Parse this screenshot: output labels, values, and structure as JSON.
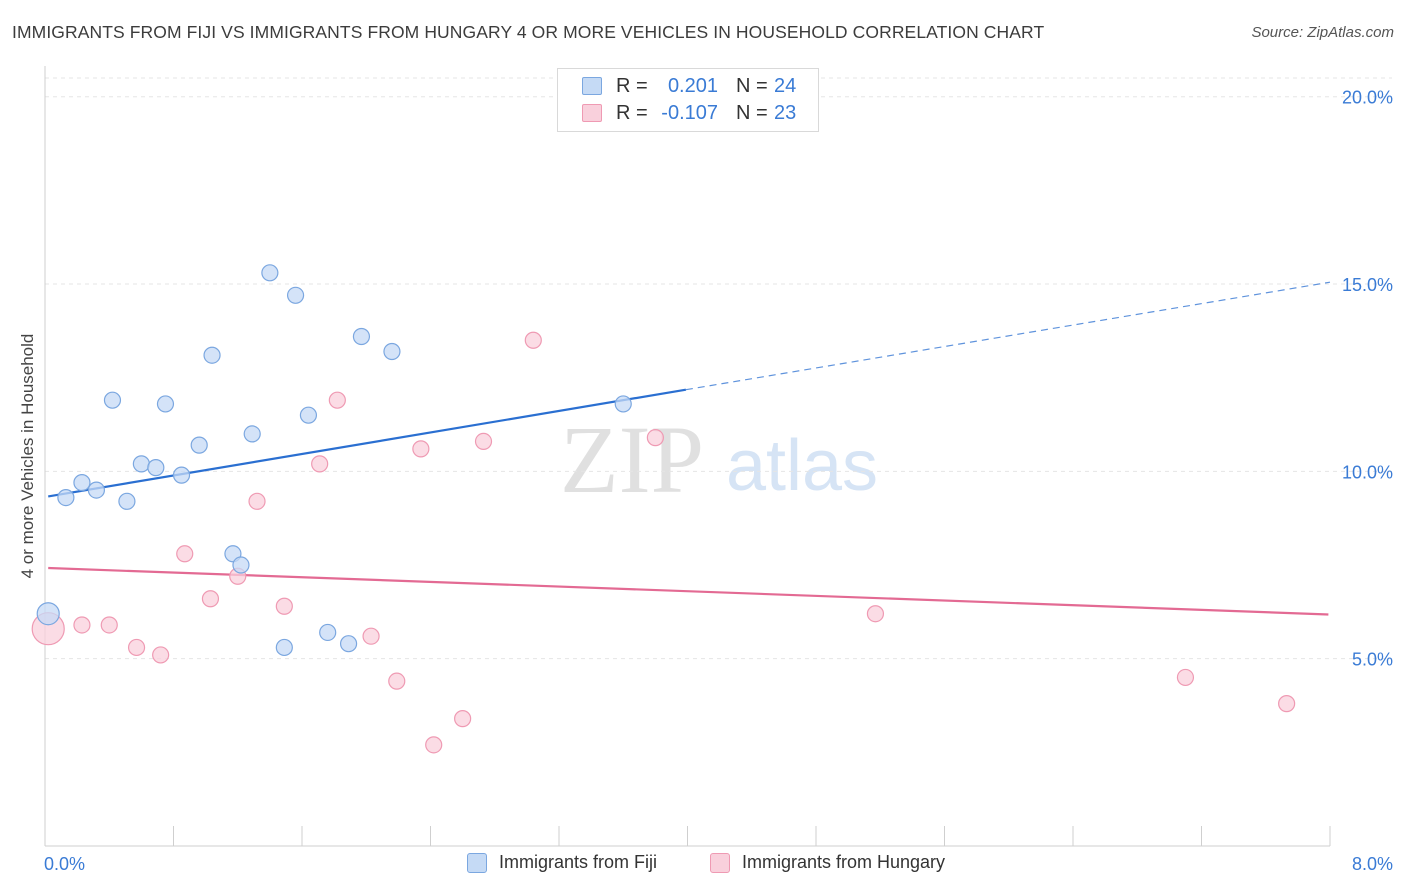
{
  "header": {
    "title": "IMMIGRANTS FROM FIJI VS IMMIGRANTS FROM HUNGARY 4 OR MORE VEHICLES IN HOUSEHOLD CORRELATION CHART",
    "source": "Source: ZipAtlas.com"
  },
  "watermark": {
    "zip": "ZIP",
    "atlas": "atlas"
  },
  "legend_top": {
    "rows": [
      {
        "r_label": "R =",
        "r_value": "0.201",
        "n_label": "N =",
        "n_value": "24"
      },
      {
        "r_label": "R =",
        "r_value": "-0.107",
        "n_label": "N =",
        "n_value": "23"
      }
    ]
  },
  "colors": {
    "fiji_fill": "#c5daf5",
    "fiji_stroke": "#7ba7e0",
    "fiji_line": "#2a6fd1",
    "hungary_fill": "#f9d0dc",
    "hungary_stroke": "#ef9ab3",
    "hungary_line": "#e36a93",
    "axis_text": "#3a7bd5",
    "grid": "#e5e5e5"
  },
  "chart_data": {
    "type": "scatter",
    "title": "IMMIGRANTS FROM FIJI VS IMMIGRANTS FROM HUNGARY 4 OR MORE VEHICLES IN HOUSEHOLD CORRELATION CHART",
    "xlabel": "",
    "ylabel": "4 or more Vehicles in Household",
    "xlim": [
      0,
      8
    ],
    "ylim": [
      0,
      20.5
    ],
    "x_tick_labels": [
      "0.0%",
      "8.0%"
    ],
    "y_ticks": [
      5,
      10,
      15,
      20
    ],
    "y_tick_labels": [
      "5.0%",
      "10.0%",
      "15.0%",
      "20.0%"
    ],
    "grid": true,
    "legend_position": "bottom",
    "series": [
      {
        "name": "Immigrants from Fiji",
        "r": 0.201,
        "n": 24,
        "points": [
          [
            0.02,
            6.2
          ],
          [
            0.13,
            9.3
          ],
          [
            0.23,
            9.7
          ],
          [
            0.32,
            9.5
          ],
          [
            0.42,
            11.9
          ],
          [
            0.51,
            9.2
          ],
          [
            0.6,
            10.2
          ],
          [
            0.69,
            10.1
          ],
          [
            0.75,
            11.8
          ],
          [
            0.85,
            9.9
          ],
          [
            0.96,
            10.7
          ],
          [
            1.04,
            13.1
          ],
          [
            1.17,
            7.8
          ],
          [
            1.22,
            7.5
          ],
          [
            1.29,
            11.0
          ],
          [
            1.4,
            15.3
          ],
          [
            1.49,
            5.3
          ],
          [
            1.56,
            14.7
          ],
          [
            1.64,
            11.5
          ],
          [
            1.76,
            5.7
          ],
          [
            1.89,
            5.4
          ],
          [
            1.97,
            13.6
          ],
          [
            2.16,
            13.2
          ],
          [
            3.6,
            11.8
          ]
        ],
        "trend": {
          "x": [
            0.02,
            3.99
          ],
          "y": [
            9.33,
            12.18
          ],
          "dashed_extension_to": [
            8.0,
            15.05
          ]
        }
      },
      {
        "name": "Immigrants from Hungary",
        "r": -0.107,
        "n": 23,
        "points": [
          [
            0.02,
            5.8
          ],
          [
            0.23,
            5.9
          ],
          [
            0.4,
            5.9
          ],
          [
            0.57,
            5.3
          ],
          [
            0.72,
            5.1
          ],
          [
            0.87,
            7.8
          ],
          [
            1.03,
            6.6
          ],
          [
            1.2,
            7.2
          ],
          [
            1.32,
            9.2
          ],
          [
            1.49,
            6.4
          ],
          [
            1.71,
            10.2
          ],
          [
            1.82,
            11.9
          ],
          [
            2.03,
            5.6
          ],
          [
            2.19,
            4.4
          ],
          [
            2.34,
            10.6
          ],
          [
            2.42,
            2.7
          ],
          [
            2.6,
            3.4
          ],
          [
            2.73,
            10.8
          ],
          [
            3.04,
            13.5
          ],
          [
            3.8,
            10.9
          ],
          [
            5.17,
            6.2
          ],
          [
            7.1,
            4.5
          ],
          [
            7.73,
            3.8
          ]
        ],
        "trend": {
          "x": [
            0.02,
            7.99
          ],
          "y": [
            7.42,
            6.18
          ]
        }
      }
    ]
  }
}
